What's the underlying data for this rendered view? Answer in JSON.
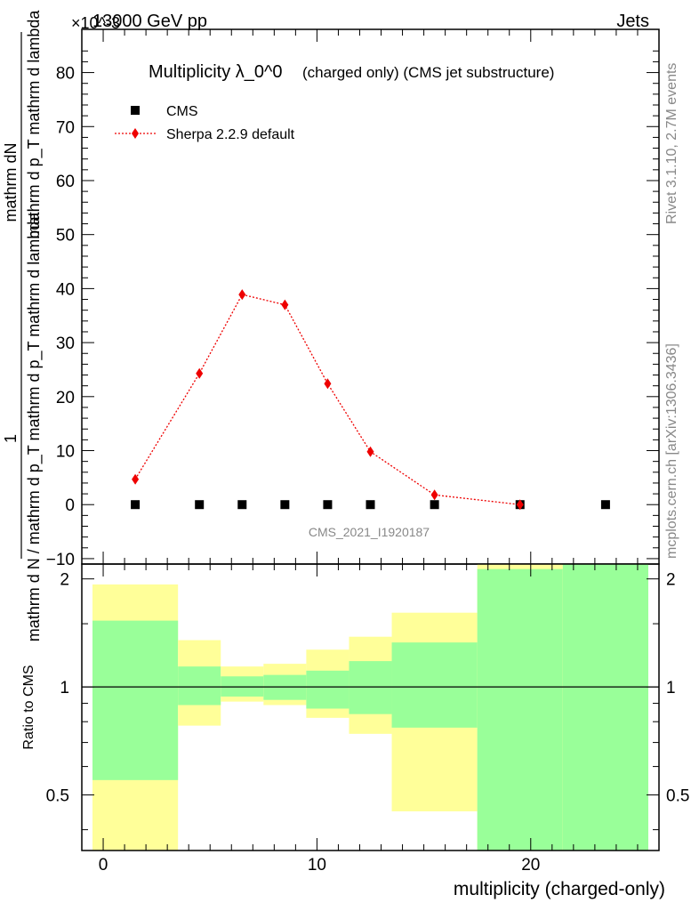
{
  "header": {
    "energy": "13000 GeV pp",
    "process": "Jets",
    "exponent": "×10^-3"
  },
  "side_labels": {
    "rivet": "Rivet 3.1.10,  2.7M events",
    "mcplots": "mcplots.cern.ch [arXiv:1306.3436]"
  },
  "chart_data": [
    {
      "type": "scatter",
      "title": "Multiplicity λ_0^0",
      "subtitle": "(charged only) (CMS jet substructure)",
      "watermark": "CMS_2021_I1920187",
      "ylabel_numerator": "mathrm dN",
      "ylabel_top": "mathrm d p_T mathrm d lambda",
      "ylabel_denominator": "mathrm d N / mathrm d p_T mathrm d p_T mathrm d lambda",
      "ylabel_one": "1",
      "xlim": [
        -1,
        26
      ],
      "ylim": [
        -11,
        88
      ],
      "yticks": [
        -10,
        0,
        10,
        20,
        30,
        40,
        50,
        60,
        70,
        80
      ],
      "y_scale_note": "×10^-3",
      "legend_position": "top-left",
      "series": [
        {
          "name": "CMS",
          "marker": "square",
          "color": "#000000",
          "x": [
            1.5,
            4.5,
            6.5,
            8.5,
            10.5,
            12.5,
            15.5,
            19.5,
            23.5
          ],
          "y": [
            0,
            0,
            0,
            0,
            0,
            0,
            0,
            0,
            0
          ]
        },
        {
          "name": "Sherpa 2.2.9 default",
          "marker": "diamond",
          "line": "dotted",
          "color": "#ee0000",
          "x": [
            1.5,
            4.5,
            6.5,
            8.5,
            10.5,
            12.5,
            15.5,
            19.5
          ],
          "y": [
            4.7,
            24.3,
            38.9,
            37.0,
            22.4,
            9.8,
            1.8,
            0.0
          ]
        }
      ]
    },
    {
      "type": "area",
      "ylabel": "Ratio to CMS",
      "xlabel": "multiplicity (charged-only)",
      "xlim": [
        -1,
        26
      ],
      "ylim": [
        0.35,
        2.2
      ],
      "xticks": [
        0,
        10,
        20
      ],
      "yticks": [
        0.5,
        1,
        2
      ],
      "reference_line": 1,
      "bands": [
        {
          "x0": -0.5,
          "x1": 3.5,
          "green": [
            0.55,
            1.53
          ],
          "yellow": [
            0.35,
            1.93
          ]
        },
        {
          "x0": 3.5,
          "x1": 5.5,
          "green": [
            0.89,
            1.14
          ],
          "yellow": [
            0.78,
            1.35
          ]
        },
        {
          "x0": 5.5,
          "x1": 7.5,
          "green": [
            0.94,
            1.07
          ],
          "yellow": [
            0.91,
            1.14
          ]
        },
        {
          "x0": 7.5,
          "x1": 9.5,
          "green": [
            0.92,
            1.08
          ],
          "yellow": [
            0.89,
            1.16
          ]
        },
        {
          "x0": 9.5,
          "x1": 11.5,
          "green": [
            0.87,
            1.11
          ],
          "yellow": [
            0.82,
            1.27
          ]
        },
        {
          "x0": 11.5,
          "x1": 13.5,
          "green": [
            0.84,
            1.18
          ],
          "yellow": [
            0.74,
            1.38
          ]
        },
        {
          "x0": 13.5,
          "x1": 17.5,
          "green": [
            0.77,
            1.33
          ],
          "yellow": [
            0.45,
            1.61
          ]
        },
        {
          "x0": 17.5,
          "x1": 21.5,
          "green": [
            0.35,
            2.13
          ],
          "yellow": [
            0.35,
            2.2
          ]
        },
        {
          "x0": 21.5,
          "x1": 25.5,
          "green": [
            0.35,
            2.2
          ],
          "yellow": [
            0.35,
            2.2
          ]
        }
      ]
    }
  ],
  "colors": {
    "green_band": "#99ff99",
    "yellow_band": "#ffff99",
    "sherpa": "#ee0000",
    "cms": "#000000"
  }
}
